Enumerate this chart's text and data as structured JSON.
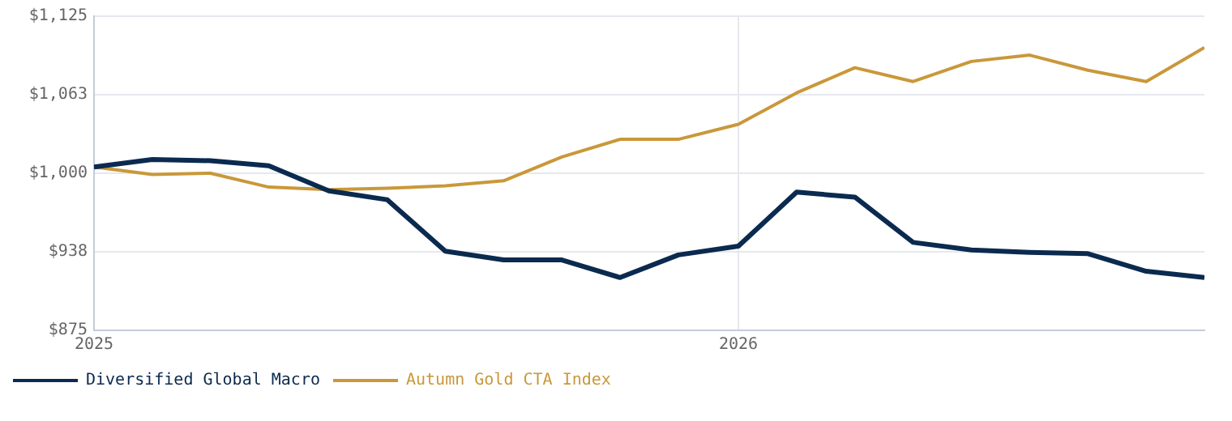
{
  "chart_data": {
    "type": "line",
    "x": [
      "2025-01-01",
      "2025-02-03",
      "2025-03-08",
      "2025-04-10",
      "2025-05-14",
      "2025-06-16",
      "2025-07-19",
      "2025-08-21",
      "2025-09-23",
      "2025-10-26",
      "2025-11-28",
      "2026-01-01",
      "2026-02-03",
      "2026-03-08",
      "2026-04-10",
      "2026-05-13",
      "2026-06-15",
      "2026-07-18",
      "2026-08-20",
      "2026-09-22"
    ],
    "series": [
      {
        "name": "Diversified Global Macro",
        "color": "#0b2a4f",
        "values": [
          1005,
          1011,
          1010,
          1006,
          986,
          979,
          938,
          931,
          931,
          917,
          935,
          942,
          985,
          981,
          945,
          939,
          937,
          936,
          922,
          917
        ]
      },
      {
        "name": "Autumn Gold CTA Index",
        "color": "#c9983a",
        "values": [
          1005,
          999,
          1000,
          989,
          987,
          988,
          990,
          994,
          1013,
          1027,
          1027,
          1039,
          1064,
          1084,
          1073,
          1089,
          1094,
          1082,
          1073,
          1100
        ]
      }
    ],
    "xlim": [
      "2025-01-01",
      "2026-09-22"
    ],
    "xticks": [
      "2025",
      "2026"
    ],
    "ylim": [
      875,
      1125
    ],
    "yticks": [
      {
        "value": 875,
        "label": "$875"
      },
      {
        "value": 937.5,
        "label": "$938"
      },
      {
        "value": 1000,
        "label": "$1,000"
      },
      {
        "value": 1062.5,
        "label": "$1,063"
      },
      {
        "value": 1125,
        "label": "$1,125"
      }
    ],
    "grid": true,
    "legend": "bottom",
    "marker": "none",
    "line_style": "solid"
  }
}
